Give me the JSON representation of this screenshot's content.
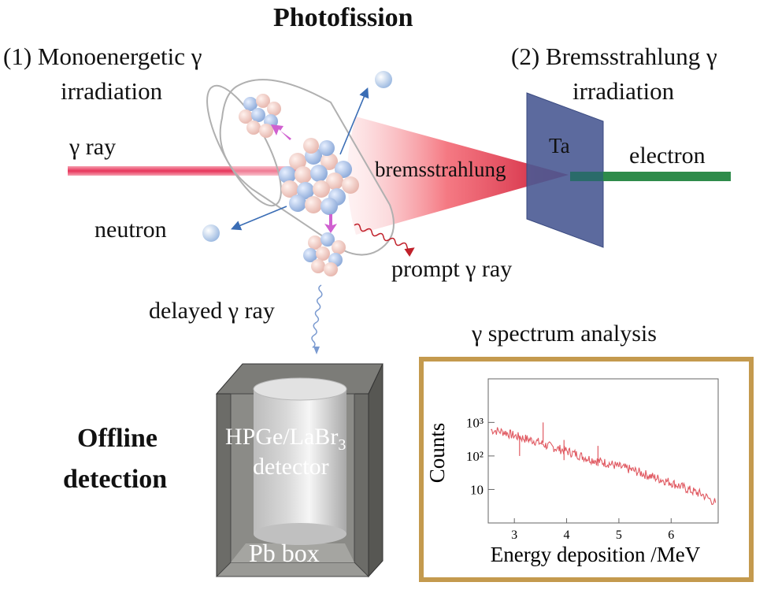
{
  "title": "Photofission",
  "method1": {
    "line1": "(1) Monoenergetic γ",
    "line2": "irradiation"
  },
  "method2": {
    "line1": "(2) Bremsstrahlung γ",
    "line2": "irradiation"
  },
  "labels": {
    "gamma_ray": "γ ray",
    "neutron": "neutron",
    "prompt_gamma": "prompt γ ray",
    "delayed_gamma": "delayed γ ray",
    "bremsstrahlung": "bremsstrahlung",
    "target": "Ta",
    "electron": "electron"
  },
  "offline": {
    "line1": "Offline",
    "line2": "detection"
  },
  "detector": {
    "line1": "HPGe/LaBr",
    "subscript": "3",
    "line2": "detector",
    "box": "Pb box"
  },
  "spectrum": {
    "title": "γ spectrum analysis"
  },
  "colors": {
    "gamma_beam": "#e8345a",
    "electron_beam": "#2e8b4a",
    "target": "#4a5a94",
    "frame": "#c49a4e",
    "spectrum_line": "#e05a62"
  },
  "chart_data": {
    "type": "line",
    "title": "",
    "xlabel": "Energy deposition /MeV",
    "ylabel": "Counts",
    "xlim": [
      2.5,
      6.9
    ],
    "ylim": [
      1,
      20000
    ],
    "yscale": "log",
    "x_ticks": [
      "3",
      "4",
      "5",
      "6"
    ],
    "y_ticks": [
      "10",
      "10²",
      "10³"
    ],
    "series": [
      {
        "name": "γ spectrum",
        "x": [
          2.55,
          2.8,
          3.0,
          3.2,
          3.4,
          3.6,
          3.8,
          4.0,
          4.2,
          4.4,
          4.6,
          4.8,
          5.0,
          5.2,
          5.4,
          5.6,
          5.8,
          6.0,
          6.2,
          6.4,
          6.6,
          6.85
        ],
        "y": [
          600,
          520,
          400,
          330,
          280,
          210,
          170,
          140,
          110,
          85,
          70,
          60,
          48,
          40,
          32,
          25,
          20,
          16,
          12,
          9,
          7,
          4
        ]
      }
    ],
    "peaks": [
      {
        "x": 3.55,
        "y": 1000
      },
      {
        "x": 3.95,
        "y": 300
      },
      {
        "x": 4.6,
        "y": 200
      },
      {
        "x": 3.1,
        "y": 400
      }
    ]
  }
}
